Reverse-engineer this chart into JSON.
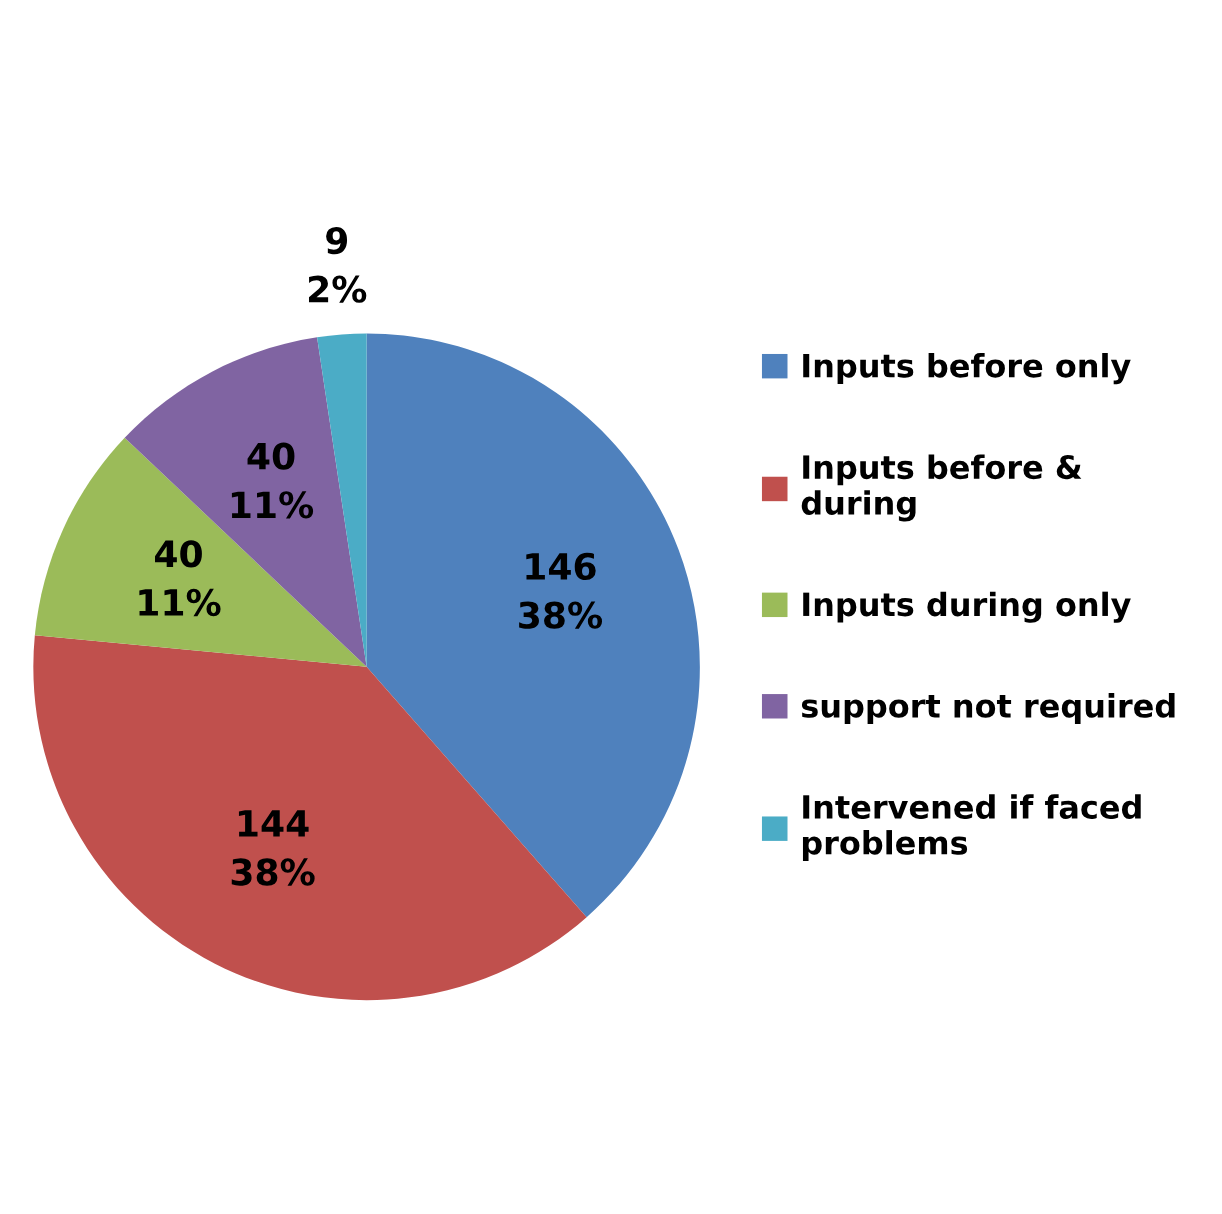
{
  "chart_data": {
    "type": "pie",
    "categories": [
      "Inputs before only",
      "Inputs before & during",
      "Inputs during only",
      "support not required",
      "Intervened if faced problems"
    ],
    "values": [
      146,
      144,
      40,
      40,
      9
    ],
    "value_labels": [
      "146\n38%",
      "144\n38%",
      "40\n11%",
      "40\n11%",
      "9\n2%"
    ],
    "colors": [
      "#4f81bd",
      "#c0504d",
      "#9bbb59",
      "#8064a2",
      "#4bacc6"
    ],
    "legend": "right"
  }
}
